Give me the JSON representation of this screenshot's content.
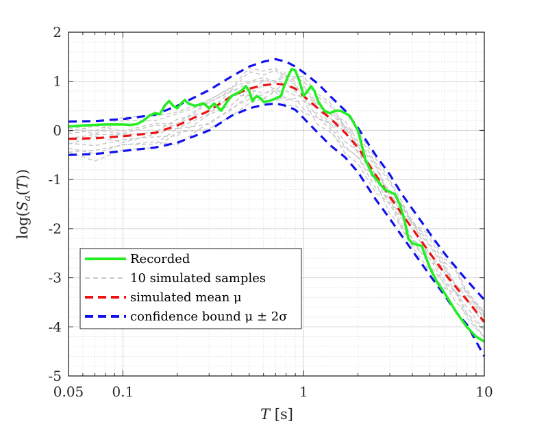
{
  "chart_data": {
    "type": "line",
    "xscale": "log",
    "xlim": [
      0.05,
      10
    ],
    "ylim": [
      -5,
      2
    ],
    "grid": "major-and-minor",
    "xlabel": "T [s]",
    "ylabel": "log(S_a(T))",
    "x_ticks": [
      0.05,
      0.1,
      1,
      10
    ],
    "x_tick_labels": [
      "0.05",
      "0.1",
      "1",
      "10"
    ],
    "y_ticks": [
      2,
      1,
      0,
      -1,
      -2,
      -3,
      -4,
      -5
    ],
    "y_tick_labels": [
      "2",
      "1",
      "0",
      "-1",
      "-2",
      "-3",
      "-4",
      "-5"
    ],
    "legend": {
      "placement": "bottom-left",
      "entries": [
        "Recorded",
        "10 simulated samples",
        "simulated mean μ",
        "confidence bound μ ± 2σ"
      ]
    },
    "colors": {
      "recorded": "#22ee22",
      "samples": "#c8c8c8",
      "mean": "#ee1111",
      "bound": "#1111ee",
      "grid": "#e6e6e6",
      "axes": "#262626"
    },
    "series": [
      {
        "name": "Recorded",
        "style": "solid",
        "points": [
          [
            0.05,
            0.08
          ],
          [
            0.06,
            0.1
          ],
          [
            0.07,
            0.11
          ],
          [
            0.08,
            0.12
          ],
          [
            0.09,
            0.12
          ],
          [
            0.1,
            0.12
          ],
          [
            0.11,
            0.11
          ],
          [
            0.12,
            0.13
          ],
          [
            0.13,
            0.2
          ],
          [
            0.14,
            0.3
          ],
          [
            0.15,
            0.35
          ],
          [
            0.16,
            0.33
          ],
          [
            0.17,
            0.5
          ],
          [
            0.18,
            0.6
          ],
          [
            0.19,
            0.5
          ],
          [
            0.2,
            0.45
          ],
          [
            0.21,
            0.55
          ],
          [
            0.22,
            0.62
          ],
          [
            0.23,
            0.55
          ],
          [
            0.25,
            0.5
          ],
          [
            0.28,
            0.55
          ],
          [
            0.3,
            0.45
          ],
          [
            0.32,
            0.55
          ],
          [
            0.35,
            0.4
          ],
          [
            0.38,
            0.6
          ],
          [
            0.4,
            0.7
          ],
          [
            0.45,
            0.8
          ],
          [
            0.48,
            0.9
          ],
          [
            0.5,
            0.8
          ],
          [
            0.52,
            0.6
          ],
          [
            0.55,
            0.7
          ],
          [
            0.58,
            0.65
          ],
          [
            0.6,
            0.58
          ],
          [
            0.65,
            0.6
          ],
          [
            0.7,
            0.65
          ],
          [
            0.75,
            0.7
          ],
          [
            0.78,
            0.9
          ],
          [
            0.82,
            1.1
          ],
          [
            0.86,
            1.25
          ],
          [
            0.9,
            1.22
          ],
          [
            0.95,
            1.0
          ],
          [
            1.0,
            0.7
          ],
          [
            1.05,
            0.8
          ],
          [
            1.1,
            0.9
          ],
          [
            1.15,
            0.8
          ],
          [
            1.2,
            0.6
          ],
          [
            1.3,
            0.4
          ],
          [
            1.4,
            0.35
          ],
          [
            1.5,
            0.4
          ],
          [
            1.6,
            0.4
          ],
          [
            1.8,
            0.3
          ],
          [
            2.0,
            0.0
          ],
          [
            2.2,
            -0.6
          ],
          [
            2.4,
            -0.9
          ],
          [
            2.6,
            -1.05
          ],
          [
            2.8,
            -1.2
          ],
          [
            3.0,
            -1.25
          ],
          [
            3.2,
            -1.3
          ],
          [
            3.4,
            -1.5
          ],
          [
            3.6,
            -1.8
          ],
          [
            3.8,
            -2.2
          ],
          [
            4.0,
            -2.3
          ],
          [
            4.5,
            -2.35
          ],
          [
            5.0,
            -2.8
          ],
          [
            5.5,
            -3.1
          ],
          [
            6.0,
            -3.3
          ],
          [
            7.0,
            -3.7
          ],
          [
            8.0,
            -4.0
          ],
          [
            9.0,
            -4.2
          ],
          [
            10.0,
            -4.3
          ]
        ]
      },
      {
        "name": "simulated mean μ",
        "style": "dashed",
        "points": [
          [
            0.05,
            -0.17
          ],
          [
            0.07,
            -0.16
          ],
          [
            0.1,
            -0.12
          ],
          [
            0.15,
            -0.05
          ],
          [
            0.2,
            0.1
          ],
          [
            0.3,
            0.4
          ],
          [
            0.4,
            0.7
          ],
          [
            0.5,
            0.85
          ],
          [
            0.6,
            0.92
          ],
          [
            0.7,
            0.95
          ],
          [
            0.8,
            0.93
          ],
          [
            0.9,
            0.85
          ],
          [
            1.0,
            0.7
          ],
          [
            1.2,
            0.45
          ],
          [
            1.4,
            0.25
          ],
          [
            1.7,
            -0.05
          ],
          [
            2.0,
            -0.35
          ],
          [
            2.5,
            -0.9
          ],
          [
            3.0,
            -1.35
          ],
          [
            3.5,
            -1.7
          ],
          [
            4.0,
            -2.0
          ],
          [
            5.0,
            -2.5
          ],
          [
            6.0,
            -2.9
          ],
          [
            7.0,
            -3.2
          ],
          [
            8.0,
            -3.45
          ],
          [
            10.0,
            -3.9
          ]
        ]
      },
      {
        "name": "confidence bound upper",
        "style": "dashed",
        "points": [
          [
            0.05,
            0.18
          ],
          [
            0.07,
            0.19
          ],
          [
            0.1,
            0.23
          ],
          [
            0.15,
            0.32
          ],
          [
            0.2,
            0.5
          ],
          [
            0.3,
            0.82
          ],
          [
            0.4,
            1.1
          ],
          [
            0.5,
            1.3
          ],
          [
            0.6,
            1.4
          ],
          [
            0.7,
            1.45
          ],
          [
            0.8,
            1.4
          ],
          [
            0.9,
            1.3
          ],
          [
            1.0,
            1.18
          ],
          [
            1.2,
            0.95
          ],
          [
            1.4,
            0.7
          ],
          [
            1.7,
            0.4
          ],
          [
            2.0,
            0.05
          ],
          [
            2.5,
            -0.5
          ],
          [
            3.0,
            -0.9
          ],
          [
            3.5,
            -1.3
          ],
          [
            4.0,
            -1.6
          ],
          [
            5.0,
            -2.1
          ],
          [
            6.0,
            -2.5
          ],
          [
            7.0,
            -2.8
          ],
          [
            8.0,
            -3.05
          ],
          [
            10.0,
            -3.45
          ]
        ]
      },
      {
        "name": "confidence bound lower",
        "style": "dashed",
        "points": [
          [
            0.05,
            -0.5
          ],
          [
            0.07,
            -0.48
          ],
          [
            0.1,
            -0.42
          ],
          [
            0.15,
            -0.35
          ],
          [
            0.2,
            -0.25
          ],
          [
            0.3,
            0.0
          ],
          [
            0.4,
            0.3
          ],
          [
            0.5,
            0.45
          ],
          [
            0.6,
            0.52
          ],
          [
            0.7,
            0.55
          ],
          [
            0.8,
            0.5
          ],
          [
            0.9,
            0.42
          ],
          [
            1.0,
            0.25
          ],
          [
            1.2,
            -0.05
          ],
          [
            1.4,
            -0.3
          ],
          [
            1.7,
            -0.55
          ],
          [
            2.0,
            -0.85
          ],
          [
            2.5,
            -1.4
          ],
          [
            3.0,
            -1.8
          ],
          [
            3.5,
            -2.15
          ],
          [
            4.0,
            -2.45
          ],
          [
            5.0,
            -2.95
          ],
          [
            6.0,
            -3.35
          ],
          [
            7.0,
            -3.7
          ],
          [
            8.0,
            -3.95
          ],
          [
            10.0,
            -4.6
          ]
        ]
      }
    ],
    "samples_note_count": 10
  }
}
